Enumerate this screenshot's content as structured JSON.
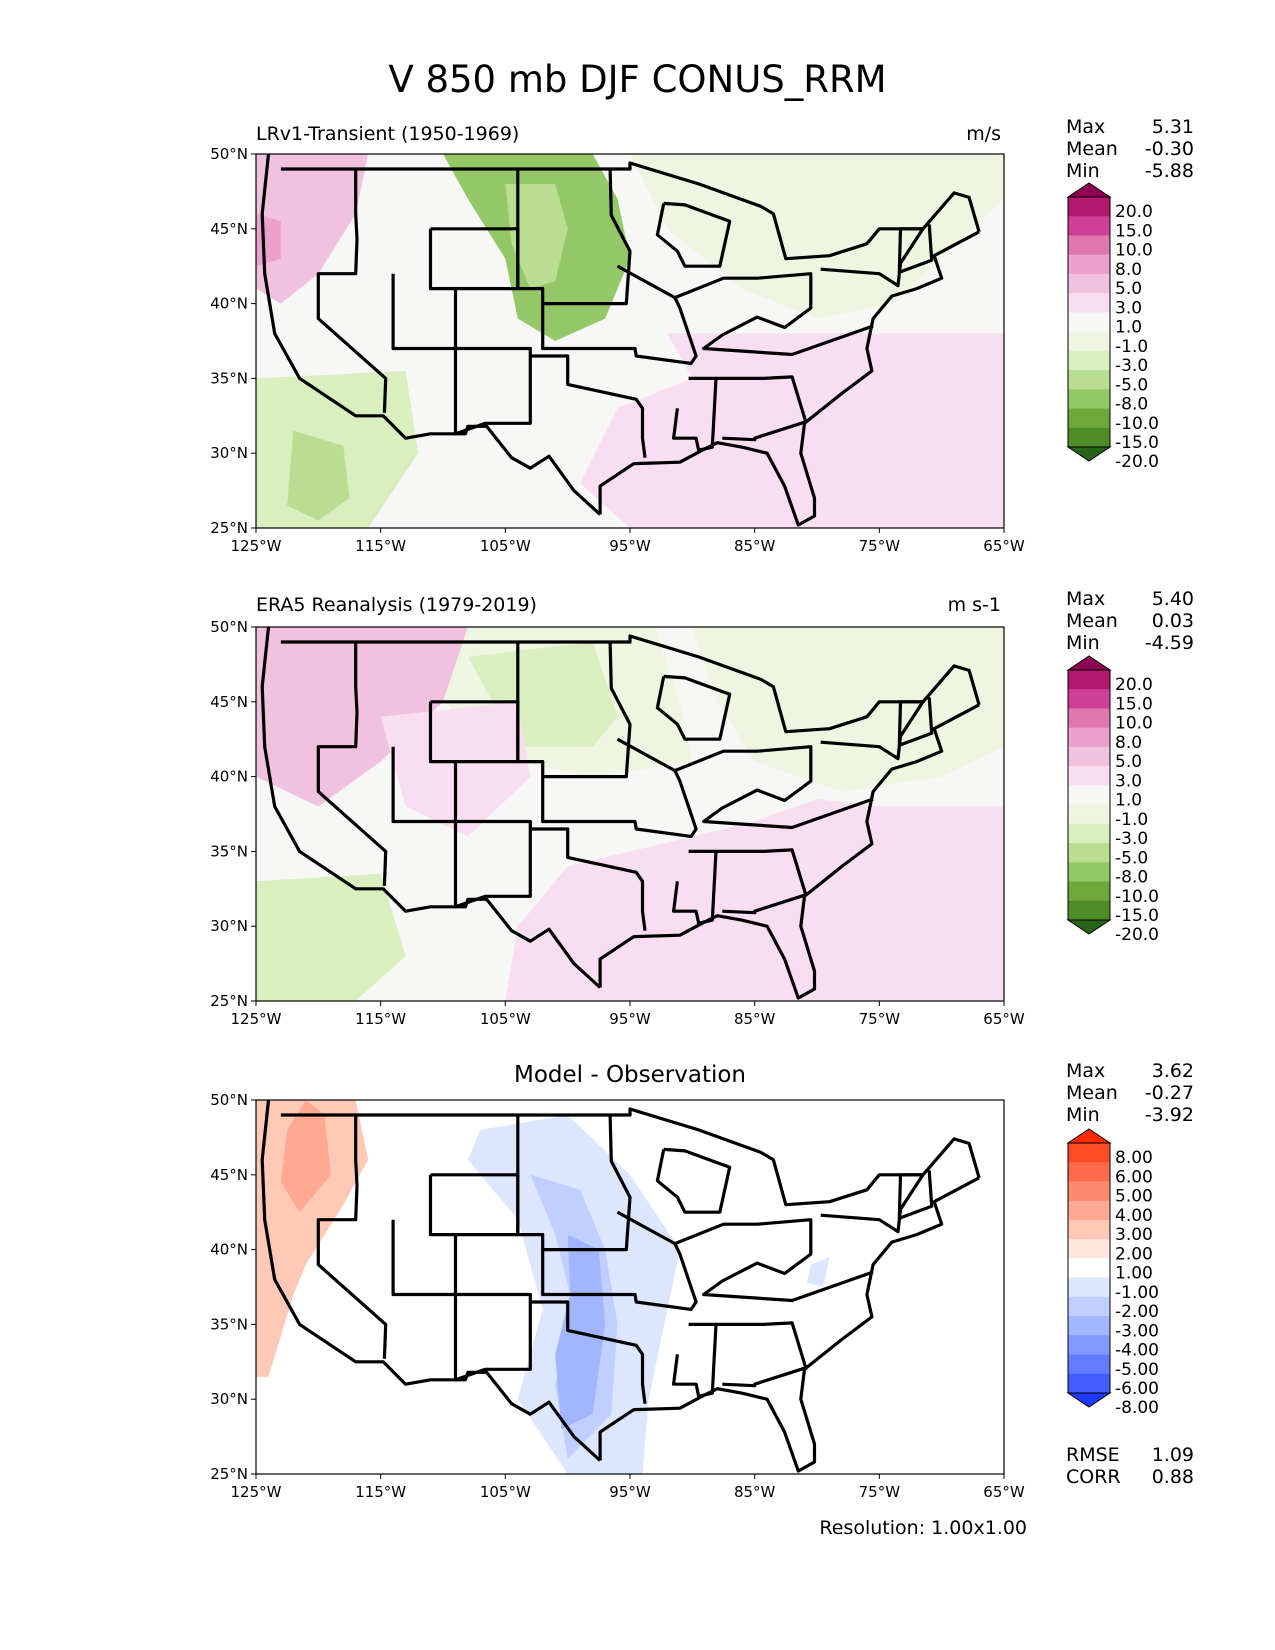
{
  "chart_data": {
    "type": "heatmap",
    "title": "V 850 mb DJF CONUS_RRM",
    "lat_ticks": [
      "50°N",
      "45°N",
      "40°N",
      "35°N",
      "30°N",
      "25°N"
    ],
    "lon_ticks": [
      "125°W",
      "115°W",
      "105°W",
      "95°W",
      "85°W",
      "75°W",
      "65°W"
    ],
    "extent": {
      "lon": [
        -125,
        -65
      ],
      "lat": [
        25,
        50
      ]
    },
    "resolution_label": "Resolution: 1.00x1.00",
    "panels": [
      {
        "id": "model",
        "title": "LRv1-Transient (1950-1969)",
        "units": "m/s",
        "stats": [
          [
            "Max",
            "5.31"
          ],
          [
            "Mean",
            "-0.30"
          ],
          [
            "Min",
            "-5.88"
          ]
        ],
        "colorbar": {
          "levels": [
            "20.0",
            "15.0",
            "10.0",
            "8.0",
            "5.0",
            "3.0",
            "1.0",
            "-1.0",
            "-3.0",
            "-5.0",
            "-8.0",
            "-10.0",
            "-15.0",
            "-20.0"
          ],
          "colors": [
            "#8e0152",
            "#b2186e",
            "#cc4097",
            "#de77ae",
            "#eaa1ce",
            "#f1c1e0",
            "#f8def0",
            "#f7f7f6",
            "#eef5e1",
            "#d9efbf",
            "#b9de91",
            "#94c765",
            "#6ea83a",
            "#4d8c27",
            "#276419"
          ]
        }
      },
      {
        "id": "observation",
        "title": "ERA5 Reanalysis (1979-2019)",
        "units": "m s-1",
        "stats": [
          [
            "Max",
            "5.40"
          ],
          [
            "Mean",
            "0.03"
          ],
          [
            "Min",
            "-4.59"
          ]
        ],
        "colorbar": {
          "levels": [
            "20.0",
            "15.0",
            "10.0",
            "8.0",
            "5.0",
            "3.0",
            "1.0",
            "-1.0",
            "-3.0",
            "-5.0",
            "-8.0",
            "-10.0",
            "-15.0",
            "-20.0"
          ],
          "colors": [
            "#8e0152",
            "#b2186e",
            "#cc4097",
            "#de77ae",
            "#eaa1ce",
            "#f1c1e0",
            "#f8def0",
            "#f7f7f6",
            "#eef5e1",
            "#d9efbf",
            "#b9de91",
            "#94c765",
            "#6ea83a",
            "#4d8c27",
            "#276419"
          ]
        }
      },
      {
        "id": "difference",
        "title": "Model - Observation",
        "units": "",
        "stats": [
          [
            "Max",
            "3.62"
          ],
          [
            "Mean",
            "-0.27"
          ],
          [
            "Min",
            "-3.92"
          ]
        ],
        "metrics": [
          [
            "RMSE",
            "1.09"
          ],
          [
            "CORR",
            "0.88"
          ]
        ],
        "colorbar": {
          "levels": [
            "8.00",
            "6.00",
            "5.00",
            "4.00",
            "3.00",
            "2.00",
            "1.00",
            "-1.00",
            "-2.00",
            "-3.00",
            "-4.00",
            "-5.00",
            "-6.00",
            "-8.00"
          ],
          "colors": [
            "#ff2a00",
            "#ff4a27",
            "#ff6a4c",
            "#ff8a6f",
            "#ffa993",
            "#ffc8b7",
            "#ffe6dd",
            "#ffffff",
            "#dde6ff",
            "#c0cfff",
            "#a2b6ff",
            "#8398ff",
            "#637bff",
            "#425cff",
            "#1f3aff"
          ]
        }
      }
    ]
  }
}
